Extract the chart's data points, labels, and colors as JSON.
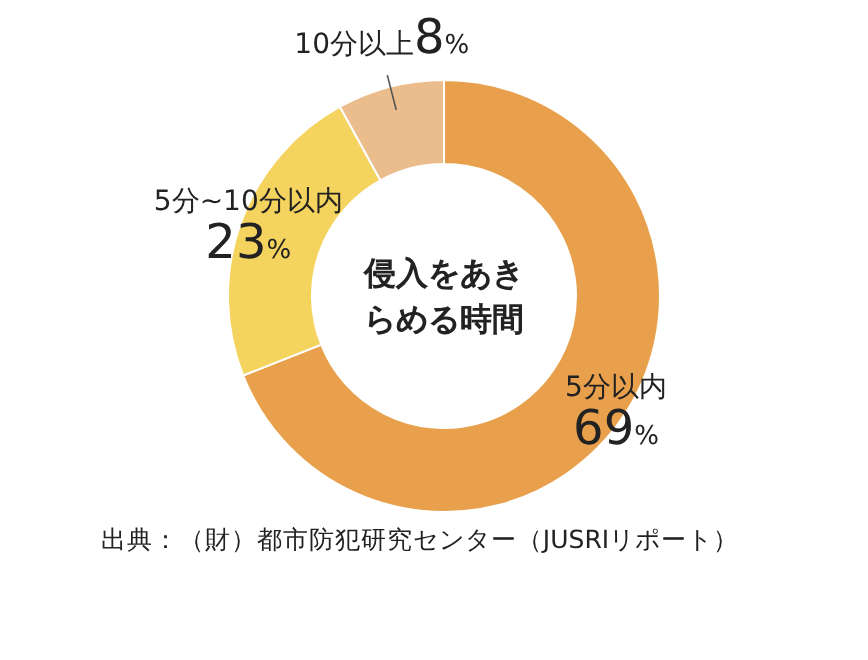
{
  "chart_data": {
    "type": "donut",
    "title": "侵入をあきらめる時間",
    "categories": [
      "5分以内",
      "5分~10分以内",
      "10分以上"
    ],
    "values": [
      69,
      23,
      8
    ],
    "colors": [
      "#e8a04c",
      "#f4d35e",
      "#ecbd8c"
    ],
    "value_labels": [
      "69%",
      "23%",
      "8%"
    ],
    "annotations": [
      "出典：（財）都市防犯研究センター（JUSRIリポート）"
    ]
  }
}
